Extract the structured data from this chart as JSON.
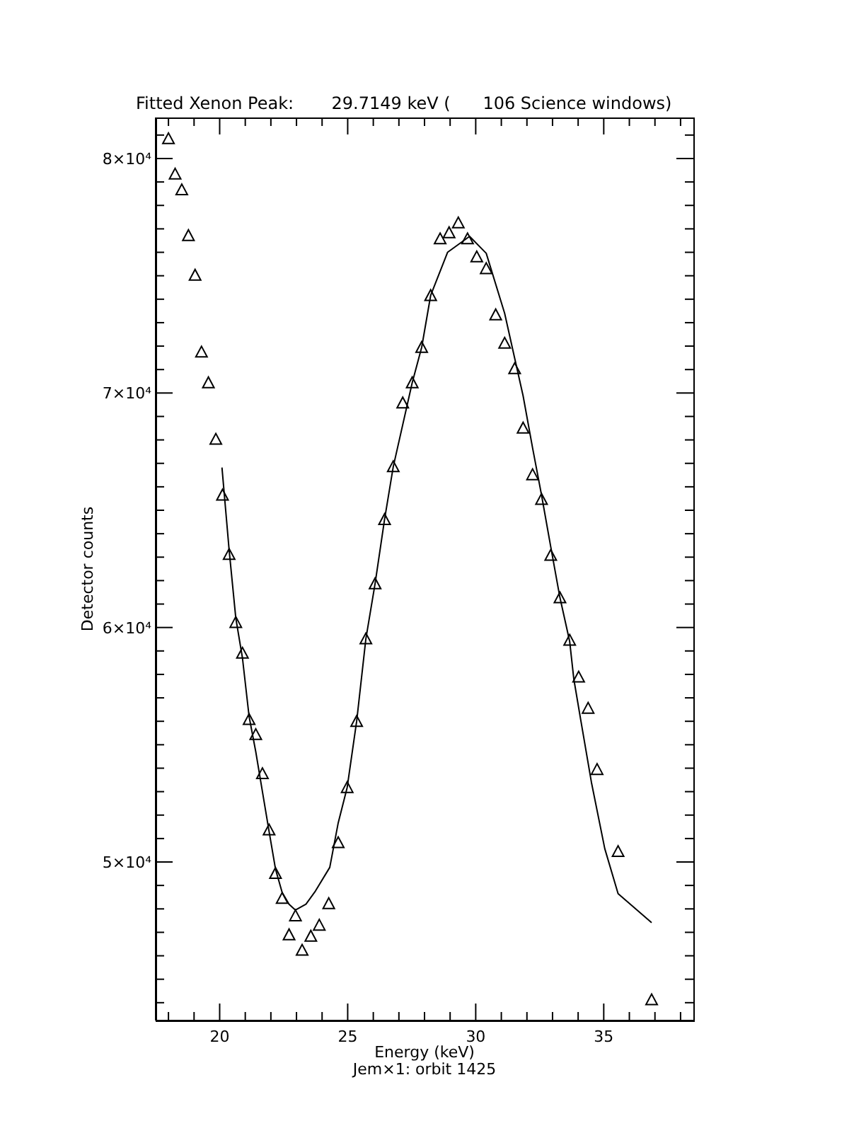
{
  "chart_data": {
    "type": "scatter",
    "title": "Fitted Xenon Peak:       29.7149 keV (      106 Science windows)",
    "xlabel": "Energy (keV)",
    "ylabel": "Detector counts",
    "annotations": [
      "Jem×1: orbit 1425"
    ],
    "xlim": [
      17.5,
      38.5
    ],
    "ylim": [
      43240,
      81750
    ],
    "xticks": [
      {
        "value": 18,
        "label": null
      },
      {
        "value": 19,
        "label": null
      },
      20,
      {
        "value": 21,
        "label": null
      },
      {
        "value": 22,
        "label": null
      },
      {
        "value": 23,
        "label": null
      },
      {
        "value": 24,
        "label": null
      },
      25,
      {
        "value": 26,
        "label": null
      },
      {
        "value": 27,
        "label": null
      },
      {
        "value": 28,
        "label": null
      },
      {
        "value": 29,
        "label": null
      },
      30,
      {
        "value": 31,
        "label": null
      },
      {
        "value": 32,
        "label": null
      },
      {
        "value": 33,
        "label": null
      },
      {
        "value": 34,
        "label": null
      },
      35,
      {
        "value": 36,
        "label": null
      },
      {
        "value": 37,
        "label": null
      },
      {
        "value": 38,
        "label": null
      }
    ],
    "yticks": [
      {
        "value": 44000,
        "label": null
      },
      {
        "value": 45000,
        "label": null
      },
      {
        "value": 46000,
        "label": null
      },
      {
        "value": 47000,
        "label": null
      },
      {
        "value": 48000,
        "label": null
      },
      {
        "value": 49000,
        "label": null
      },
      {
        "value": 50000,
        "label": "5×10⁴"
      },
      {
        "value": 51000,
        "label": null
      },
      {
        "value": 52000,
        "label": null
      },
      {
        "value": 53000,
        "label": null
      },
      {
        "value": 54000,
        "label": null
      },
      {
        "value": 55000,
        "label": null
      },
      {
        "value": 56000,
        "label": null
      },
      {
        "value": 57000,
        "label": null
      },
      {
        "value": 58000,
        "label": null
      },
      {
        "value": 59000,
        "label": null
      },
      {
        "value": 60000,
        "label": "6×10⁴"
      },
      {
        "value": 61000,
        "label": null
      },
      {
        "value": 62000,
        "label": null
      },
      {
        "value": 63000,
        "label": null
      },
      {
        "value": 64000,
        "label": null
      },
      {
        "value": 65000,
        "label": null
      },
      {
        "value": 66000,
        "label": null
      },
      {
        "value": 67000,
        "label": null
      },
      {
        "value": 68000,
        "label": null
      },
      {
        "value": 69000,
        "label": null
      },
      {
        "value": 70000,
        "label": "7×10⁴"
      },
      {
        "value": 71000,
        "label": null
      },
      {
        "value": 72000,
        "label": null
      },
      {
        "value": 73000,
        "label": null
      },
      {
        "value": 74000,
        "label": null
      },
      {
        "value": 75000,
        "label": null
      },
      {
        "value": 76000,
        "label": null
      },
      {
        "value": 77000,
        "label": null
      },
      {
        "value": 78000,
        "label": null
      },
      {
        "value": 79000,
        "label": null
      },
      {
        "value": 80000,
        "label": "8×10⁴"
      },
      {
        "value": 81000,
        "label": null
      }
    ],
    "series": [
      {
        "color": "#000000",
        "marker": "triangle",
        "x": [
          18.0,
          18.26,
          18.52,
          18.78,
          19.04,
          19.29,
          19.56,
          19.85,
          20.11,
          20.37,
          20.63,
          20.89,
          21.15,
          21.41,
          21.67,
          21.93,
          22.18,
          22.44,
          22.71,
          22.96,
          23.22,
          23.56,
          23.89,
          24.26,
          24.63,
          24.98,
          25.35,
          25.71,
          26.07,
          26.44,
          26.78,
          27.15,
          27.52,
          27.89,
          28.24,
          28.61,
          28.96,
          29.32,
          29.68,
          30.04,
          30.41,
          30.78,
          31.13,
          31.52,
          31.85,
          32.22,
          32.57,
          32.93,
          33.29,
          33.67,
          34.02,
          34.39,
          34.74,
          35.56,
          36.87
        ],
        "values": [
          80850,
          79340,
          78670,
          76720,
          75030,
          71750,
          70440,
          68030,
          65650,
          63120,
          60220,
          58910,
          56080,
          55440,
          53770,
          51370,
          49520,
          48450,
          46900,
          47710,
          46240,
          46840,
          47310,
          48230,
          50830,
          53180,
          56000,
          59520,
          61870,
          64610,
          66860,
          69580,
          70440,
          71950,
          74160,
          76580,
          76840,
          77260,
          76580,
          75810,
          75310,
          73340,
          72130,
          71040,
          68510,
          66520,
          65470,
          63080,
          61270,
          59460,
          57890,
          56560,
          53950,
          50450,
          44130
        ]
      },
      {
        "type": "line",
        "color": "#000000",
        "marker": "none",
        "line_style": "solid",
        "x": [
          20.09,
          20.37,
          20.63,
          20.89,
          21.15,
          21.41,
          21.67,
          21.93,
          22.18,
          22.44,
          22.71,
          22.96,
          23.37,
          23.74,
          24.3,
          24.63,
          24.98,
          25.35,
          25.71,
          26.07,
          26.44,
          26.78,
          27.52,
          27.89,
          28.24,
          28.9,
          29.76,
          30.41,
          31.13,
          31.52,
          31.85,
          32.22,
          32.57,
          32.93,
          33.29,
          33.67,
          33.83,
          34.11,
          34.52,
          35.04,
          35.56,
          36.87
        ],
        "values": [
          66820,
          63300,
          60400,
          58700,
          56200,
          54700,
          53000,
          51300,
          49700,
          48700,
          48200,
          47950,
          48200,
          48760,
          49770,
          51670,
          53180,
          56000,
          59520,
          61870,
          64610,
          66860,
          70440,
          71950,
          74160,
          76000,
          76680,
          75960,
          73400,
          71490,
          69880,
          67660,
          65650,
          63440,
          61270,
          59400,
          57810,
          56000,
          53390,
          50570,
          48650,
          47410
        ]
      }
    ]
  }
}
